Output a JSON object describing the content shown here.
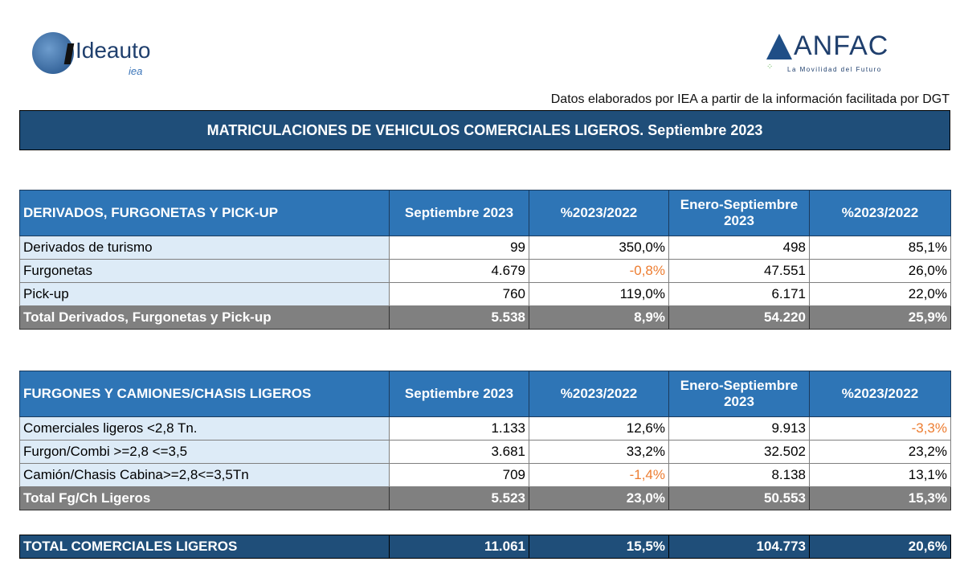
{
  "logos": {
    "left": "Ideauto",
    "left_sub": "iea",
    "right": "ANFAC",
    "right_sub": "La Movilidad del Futuro"
  },
  "source": "Datos elaborados por IEA a partir de la información facilitada por DGT",
  "title": "MATRICULACIONES DE VEHICULOS COMERCIALES LIGEROS. Septiembre 2023",
  "colors": {
    "header": "#2E75B6",
    "title": "#1F4E79",
    "negative": "#ED7D31",
    "total": "#808080"
  },
  "table1": {
    "headers": [
      "DERIVADOS, FURGONETAS Y PICK-UP",
      "Septiembre 2023",
      "%2023/2022",
      "Enero-Septiembre 2023",
      "%2023/2022"
    ],
    "rows": [
      [
        "Derivados de turismo",
        "99",
        "350,0%",
        "498",
        "85,1%"
      ],
      [
        "Furgonetas",
        "4.679",
        "-0,8%",
        "47.551",
        "26,0%"
      ],
      [
        "Pick-up",
        "760",
        "119,0%",
        "6.171",
        "22,0%"
      ]
    ],
    "total": [
      "Total Derivados, Furgonetas y Pick-up",
      "5.538",
      "8,9%",
      "54.220",
      "25,9%"
    ]
  },
  "table2": {
    "headers": [
      "FURGONES Y CAMIONES/CHASIS LIGEROS",
      "Septiembre 2023",
      "%2023/2022",
      "Enero-Septiembre 2023",
      "%2023/2022"
    ],
    "rows": [
      [
        "Comerciales ligeros <2,8 Tn.",
        "1.133",
        "12,6%",
        "9.913",
        "-3,3%"
      ],
      [
        "Furgon/Combi >=2,8 <=3,5",
        "3.681",
        "33,2%",
        "32.502",
        "23,2%"
      ],
      [
        "Camión/Chasis Cabina>=2,8<=3,5Tn",
        "709",
        "-1,4%",
        "8.138",
        "13,1%"
      ]
    ],
    "total": [
      "Total Fg/Ch Ligeros",
      "5.523",
      "23,0%",
      "50.553",
      "15,3%"
    ]
  },
  "grand_total": [
    "TOTAL COMERCIALES LIGEROS",
    "11.061",
    "15,5%",
    "104.773",
    "20,6%"
  ]
}
